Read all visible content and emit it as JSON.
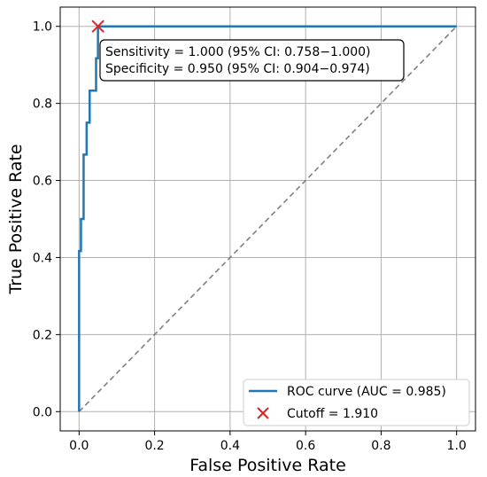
{
  "chart_data": {
    "type": "line",
    "title": "",
    "xlabel": "False Positive Rate",
    "ylabel": "True Positive Rate",
    "xlim": [
      -0.05,
      1.05
    ],
    "ylim": [
      -0.05,
      1.05
    ],
    "xticks": [
      "0.0",
      "0.2",
      "0.4",
      "0.6",
      "0.8",
      "1.0"
    ],
    "yticks": [
      "0.0",
      "0.2",
      "0.4",
      "0.6",
      "0.8",
      "1.0"
    ],
    "grid": true,
    "legend_position": "lower-right",
    "series": [
      {
        "name": "ROC curve (AUC = 0.985)",
        "color": "#1f77b4",
        "x": [
          0.0,
          0.0,
          0.005,
          0.005,
          0.012,
          0.012,
          0.02,
          0.02,
          0.028,
          0.028,
          0.045,
          0.045,
          0.05,
          0.05,
          1.0
        ],
        "y": [
          0.0,
          0.417,
          0.417,
          0.5,
          0.5,
          0.667,
          0.667,
          0.75,
          0.75,
          0.833,
          0.833,
          0.917,
          0.917,
          1.0,
          1.0
        ]
      }
    ],
    "reference_line": {
      "x": [
        0,
        1
      ],
      "y": [
        0,
        1
      ],
      "color": "#808080",
      "style": "dashed"
    },
    "cutoff_point": {
      "name": "Cutoff = 1.910",
      "x": 0.05,
      "y": 1.0,
      "color": "#d62728",
      "marker": "x"
    },
    "annotation": {
      "lines": [
        "Sensitivity = 1.000 (95% CI: 0.758−1.000)",
        "Specificity = 0.950 (95% CI: 0.904−0.974)"
      ]
    }
  }
}
